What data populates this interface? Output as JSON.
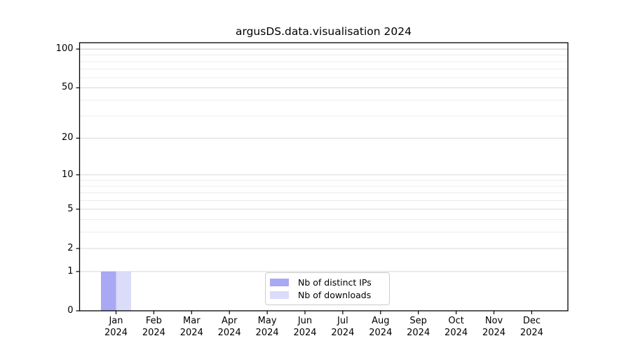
{
  "chart_data": {
    "type": "bar",
    "title": "argusDS.data.visualisation 2024",
    "categories": [
      "Jan 2024",
      "Feb 2024",
      "Mar 2024",
      "Apr 2024",
      "May 2024",
      "Jun 2024",
      "Jul 2024",
      "Aug 2024",
      "Sep 2024",
      "Oct 2024",
      "Nov 2024",
      "Dec 2024"
    ],
    "series": [
      {
        "name": "Nb of distinct IPs",
        "color": "#a8a8f4",
        "values": [
          1,
          0,
          0,
          0,
          0,
          0,
          0,
          0,
          0,
          0,
          0,
          0
        ]
      },
      {
        "name": "Nb of downloads",
        "color": "#dbdbfa",
        "values": [
          1,
          0,
          0,
          0,
          0,
          0,
          0,
          0,
          0,
          0,
          0,
          0
        ]
      }
    ],
    "xlabel": "",
    "ylabel": "",
    "y_scale": "log1p",
    "y_major_ticks": [
      0,
      1,
      2,
      5,
      10,
      20,
      50,
      100
    ],
    "y_minor_ticks": [
      3,
      4,
      6,
      7,
      8,
      9,
      30,
      40,
      60,
      70,
      80,
      90
    ],
    "ylim": [
      0,
      112
    ],
    "grid": true,
    "legend_position": "lower center",
    "colors": {
      "axis": "#000000",
      "grid_major": "#d8d8d8",
      "grid_major_top": "#c3c3c3",
      "grid_minor": "#ececec",
      "text": "#000000",
      "background": "#ffffff",
      "legend_border": "#cccccc"
    }
  }
}
